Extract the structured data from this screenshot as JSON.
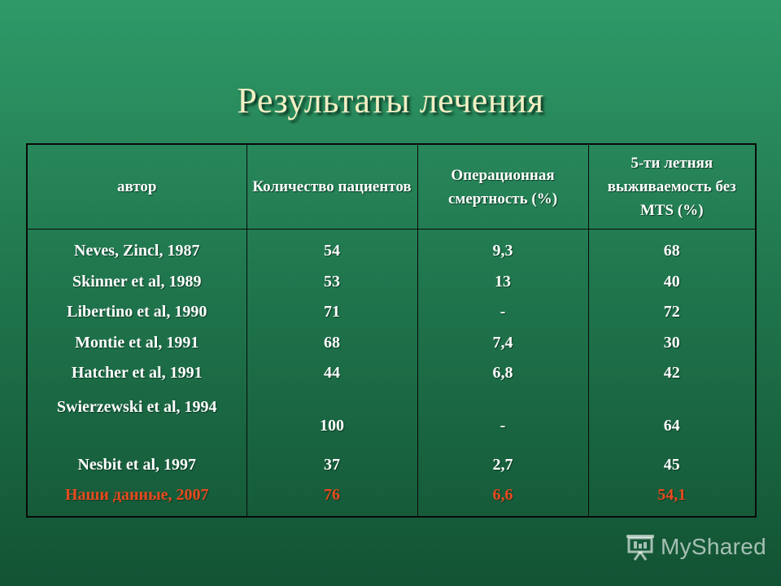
{
  "title": "Результаты лечения",
  "table": {
    "headers": [
      "автор",
      "Количество пациентов",
      "Операционная смертность (%)",
      "5-ти летняя выживаемость без MTS (%)"
    ],
    "rows": [
      {
        "author": "Neves, Zincl, 1987",
        "patients": "54",
        "mortality": "9,3",
        "survival": "68"
      },
      {
        "author": "Skinner et al, 1989",
        "patients": "53",
        "mortality": "13",
        "survival": "40"
      },
      {
        "author": "Libertino et al, 1990",
        "patients": "71",
        "mortality": "-",
        "survival": "72"
      },
      {
        "author": "Montie et al, 1991",
        "patients": "68",
        "mortality": "7,4",
        "survival": "30"
      },
      {
        "author": "Hatcher et al, 1991",
        "patients": "44",
        "mortality": "6,8",
        "survival": "42"
      },
      {
        "author": "Swierzewski et al, 1994",
        "patients": "100",
        "mortality": "-",
        "survival": "64"
      },
      {
        "author": "Nesbit et al, 1997",
        "patients": "37",
        "mortality": "2,7",
        "survival": "45"
      },
      {
        "author": "Наши данные, 2007",
        "patients": "76",
        "mortality": "6,6",
        "survival": "54,1"
      }
    ]
  },
  "logo": {
    "text": "MyShared",
    "icon": "presentation-board-icon"
  },
  "colors": {
    "title": "#f2efc4",
    "own_data": "#e84a1f",
    "background_top": "#2f9a68",
    "background_bottom": "#125334"
  }
}
